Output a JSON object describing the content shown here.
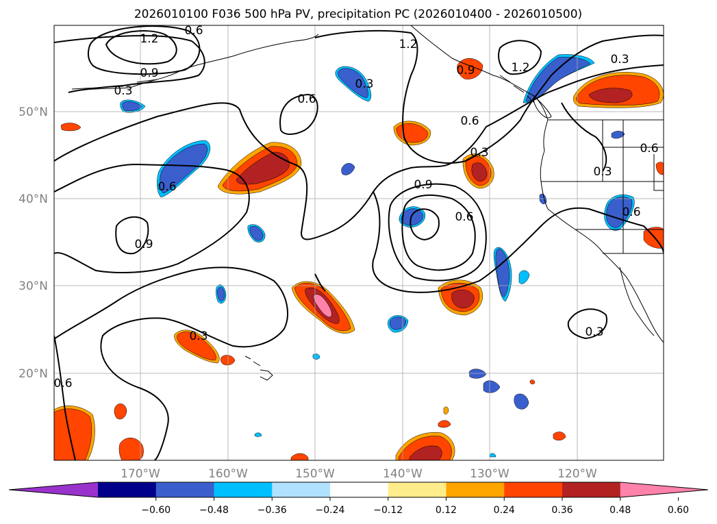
{
  "title": "2026010100 F036 500 hPa PV, precipitation PC (2026010400 - 2026010500)",
  "map": {
    "lat_labels": [
      "50°N",
      "40°N",
      "30°N",
      "20°N"
    ],
    "lon_labels": [
      "170°W",
      "160°W",
      "150°W",
      "140°W",
      "130°W",
      "120°W"
    ],
    "contour_labels": [
      "1.2",
      "0.6",
      "0.9",
      "0.3",
      "0.6",
      "0.6",
      "0.9",
      "0.3",
      "1.2",
      "0.9",
      "1.2",
      "0.3",
      "0.6",
      "0.3",
      "0.6",
      "0.9",
      "0.3",
      "0.6",
      "0.6",
      "0.3",
      "0.6",
      "0.3"
    ]
  },
  "colorbar": {
    "ticks": [
      "−0.60",
      "−0.48",
      "−0.36",
      "−0.24",
      "−0.12",
      "0.12",
      "0.24",
      "0.36",
      "0.48",
      "0.60"
    ],
    "colors": [
      "#9933cc",
      "#00008b",
      "#3a5fcd",
      "#00bfff",
      "#b0e2ff",
      "#ffffff",
      "#ffec8b",
      "#ffa500",
      "#ff4500",
      "#b22222",
      "#ff82ab"
    ]
  }
}
